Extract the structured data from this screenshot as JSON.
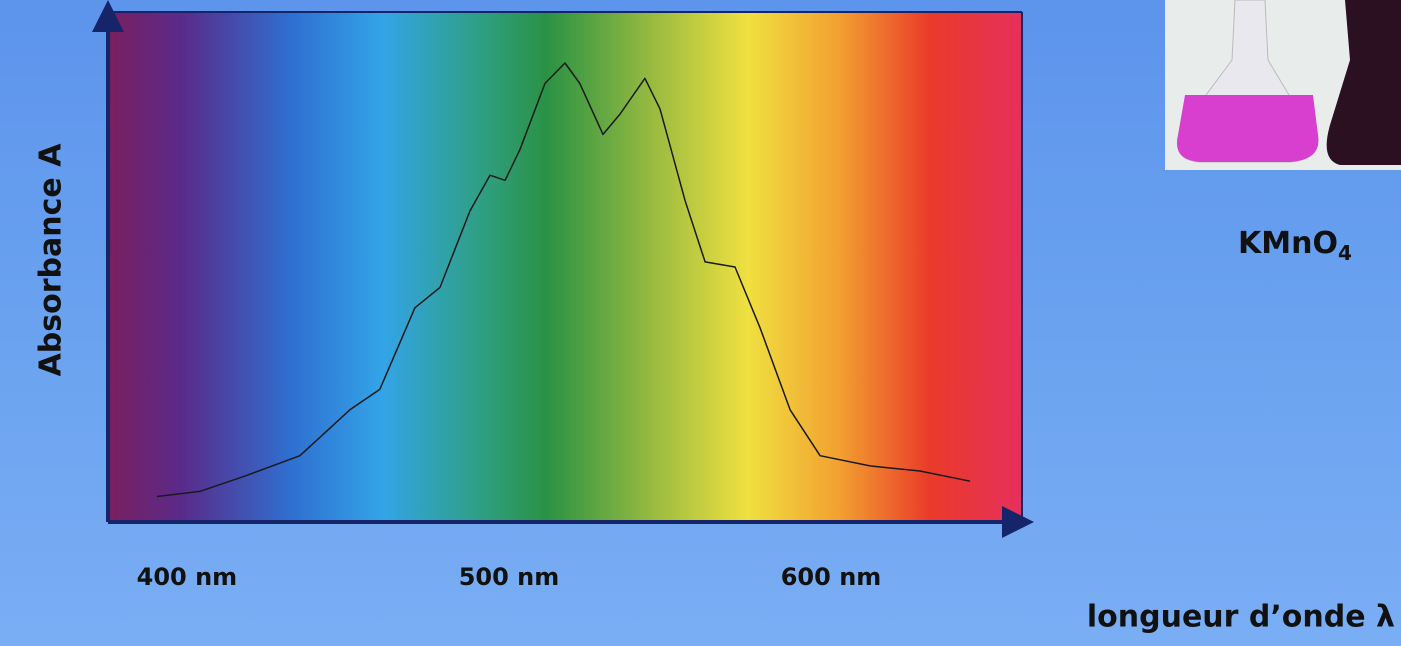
{
  "chart_data": {
    "type": "line",
    "y_label": "Absorbance A",
    "x_label": "longueur d’onde λ",
    "x": [
      390.7,
      404.0,
      418.0,
      435.1,
      450.6,
      459.9,
      470.8,
      478.6,
      487.9,
      494.1,
      498.8,
      503.4,
      511.2,
      517.4,
      522.0,
      529.2,
      534.5,
      542.2,
      546.9,
      554.7,
      560.9,
      570.2,
      578.0,
      587.3,
      596.6,
      612.1,
      627.6,
      643.2
    ],
    "values": [
      0.05,
      0.06,
      0.09,
      0.13,
      0.22,
      0.26,
      0.42,
      0.46,
      0.61,
      0.68,
      0.67,
      0.73,
      0.86,
      0.9,
      0.86,
      0.76,
      0.8,
      0.87,
      0.81,
      0.63,
      0.51,
      0.5,
      0.38,
      0.22,
      0.13,
      0.11,
      0.1,
      0.08
    ],
    "color": "#1a1a1a",
    "xlim": [
      375.5,
      659.3
    ],
    "ylim": [
      0,
      1
    ],
    "xticks": [
      {
        "value": 400,
        "label": "400 nm"
      },
      {
        "value": 500,
        "label": "500 nm"
      },
      {
        "value": 600,
        "label": "600 nm"
      }
    ]
  },
  "caption": {
    "text": "KMnO",
    "subscript": "4"
  }
}
